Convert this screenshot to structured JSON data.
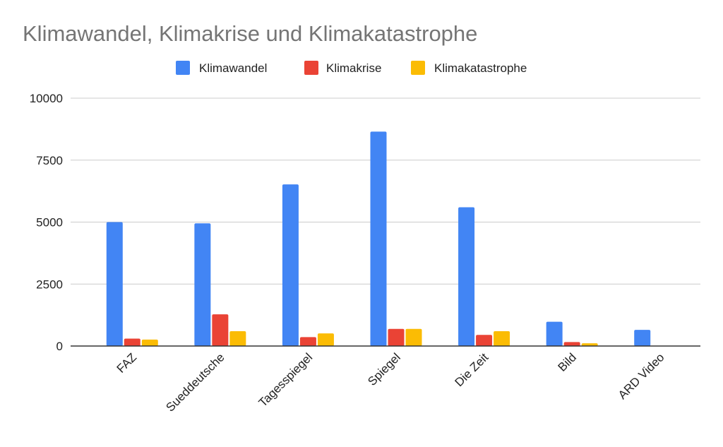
{
  "chart_data": {
    "type": "bar",
    "title": "Klimawandel, Klimakrise und Klimakatastrophe",
    "categories": [
      "FAZ",
      "Sueddeutsche",
      "Tagesspiegel",
      "Spiegel",
      "Die Zeit",
      "Bild",
      "ARD Video"
    ],
    "series": [
      {
        "name": "Klimawandel",
        "color": "#4285f4",
        "values": [
          5000,
          4950,
          6520,
          8650,
          5600,
          980,
          650
        ]
      },
      {
        "name": "Klimakrise",
        "color": "#ea4335",
        "values": [
          300,
          1280,
          360,
          690,
          450,
          160,
          0
        ]
      },
      {
        "name": "Klimakatastrophe",
        "color": "#fbbc04",
        "values": [
          260,
          600,
          510,
          690,
          600,
          110,
          0
        ]
      }
    ],
    "ylim": [
      0,
      10000
    ],
    "yticks": [
      0,
      2500,
      5000,
      7500,
      10000
    ],
    "xlabel": "",
    "ylabel": "",
    "legend_position": "top-center",
    "grid": true
  }
}
